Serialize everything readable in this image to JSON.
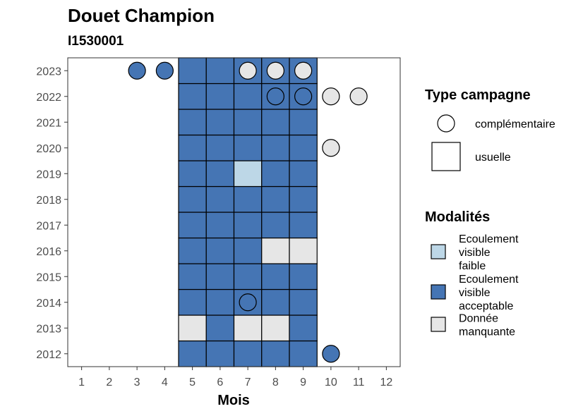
{
  "chart_data": {
    "type": "heatmap",
    "title": "Douet Champion",
    "subtitle": "I1530001",
    "xlabel": "Mois",
    "ylabel": "",
    "x_ticks": [
      1,
      2,
      3,
      4,
      5,
      6,
      7,
      8,
      9,
      10,
      11,
      12
    ],
    "y_ticks": [
      2012,
      2013,
      2014,
      2015,
      2016,
      2017,
      2018,
      2019,
      2020,
      2021,
      2022,
      2023
    ],
    "xlim": [
      0.5,
      12.5
    ],
    "ylim": [
      2011.5,
      2023.5
    ],
    "grid": false,
    "legend_position": "right",
    "colors": {
      "faible": "#bdd7e7",
      "acceptable": "#4575b4",
      "manquante": "#e6e6e6"
    },
    "legend_shape": {
      "title": "Type campagne",
      "entries": [
        {
          "label": "complémentaire",
          "shape": "circle"
        },
        {
          "label": "usuelle",
          "shape": "square"
        }
      ]
    },
    "legend_fill": {
      "title": "Modalités",
      "entries": [
        {
          "key": "faible",
          "lines": [
            "Ecoulement",
            "visible",
            "faible"
          ]
        },
        {
          "key": "acceptable",
          "lines": [
            "Ecoulement",
            "visible",
            "acceptable"
          ]
        },
        {
          "key": "manquante",
          "lines": [
            "Donnée",
            "manquante"
          ]
        }
      ]
    },
    "points": [
      {
        "month": 5,
        "year": 2012,
        "shape": "square",
        "modalite": "acceptable"
      },
      {
        "month": 6,
        "year": 2012,
        "shape": "square",
        "modalite": "acceptable"
      },
      {
        "month": 7,
        "year": 2012,
        "shape": "square",
        "modalite": "acceptable"
      },
      {
        "month": 8,
        "year": 2012,
        "shape": "square",
        "modalite": "acceptable"
      },
      {
        "month": 9,
        "year": 2012,
        "shape": "square",
        "modalite": "acceptable"
      },
      {
        "month": 10,
        "year": 2012,
        "shape": "circle",
        "modalite": "acceptable"
      },
      {
        "month": 5,
        "year": 2013,
        "shape": "square",
        "modalite": "manquante"
      },
      {
        "month": 6,
        "year": 2013,
        "shape": "square",
        "modalite": "acceptable"
      },
      {
        "month": 7,
        "year": 2013,
        "shape": "square",
        "modalite": "manquante"
      },
      {
        "month": 8,
        "year": 2013,
        "shape": "square",
        "modalite": "manquante"
      },
      {
        "month": 9,
        "year": 2013,
        "shape": "square",
        "modalite": "acceptable"
      },
      {
        "month": 5,
        "year": 2014,
        "shape": "square",
        "modalite": "acceptable"
      },
      {
        "month": 6,
        "year": 2014,
        "shape": "square",
        "modalite": "acceptable"
      },
      {
        "month": 7,
        "year": 2014,
        "shape": "square",
        "modalite": "acceptable"
      },
      {
        "month": 7,
        "year": 2014,
        "shape": "circle",
        "modalite": "acceptable"
      },
      {
        "month": 8,
        "year": 2014,
        "shape": "square",
        "modalite": "acceptable"
      },
      {
        "month": 9,
        "year": 2014,
        "shape": "square",
        "modalite": "acceptable"
      },
      {
        "month": 5,
        "year": 2015,
        "shape": "square",
        "modalite": "acceptable"
      },
      {
        "month": 6,
        "year": 2015,
        "shape": "square",
        "modalite": "acceptable"
      },
      {
        "month": 7,
        "year": 2015,
        "shape": "square",
        "modalite": "acceptable"
      },
      {
        "month": 8,
        "year": 2015,
        "shape": "square",
        "modalite": "acceptable"
      },
      {
        "month": 9,
        "year": 2015,
        "shape": "square",
        "modalite": "acceptable"
      },
      {
        "month": 5,
        "year": 2016,
        "shape": "square",
        "modalite": "acceptable"
      },
      {
        "month": 6,
        "year": 2016,
        "shape": "square",
        "modalite": "acceptable"
      },
      {
        "month": 7,
        "year": 2016,
        "shape": "square",
        "modalite": "acceptable"
      },
      {
        "month": 8,
        "year": 2016,
        "shape": "square",
        "modalite": "manquante"
      },
      {
        "month": 9,
        "year": 2016,
        "shape": "square",
        "modalite": "manquante"
      },
      {
        "month": 5,
        "year": 2017,
        "shape": "square",
        "modalite": "acceptable"
      },
      {
        "month": 6,
        "year": 2017,
        "shape": "square",
        "modalite": "acceptable"
      },
      {
        "month": 7,
        "year": 2017,
        "shape": "square",
        "modalite": "acceptable"
      },
      {
        "month": 8,
        "year": 2017,
        "shape": "square",
        "modalite": "acceptable"
      },
      {
        "month": 9,
        "year": 2017,
        "shape": "square",
        "modalite": "acceptable"
      },
      {
        "month": 5,
        "year": 2018,
        "shape": "square",
        "modalite": "acceptable"
      },
      {
        "month": 6,
        "year": 2018,
        "shape": "square",
        "modalite": "acceptable"
      },
      {
        "month": 7,
        "year": 2018,
        "shape": "square",
        "modalite": "acceptable"
      },
      {
        "month": 8,
        "year": 2018,
        "shape": "square",
        "modalite": "acceptable"
      },
      {
        "month": 9,
        "year": 2018,
        "shape": "square",
        "modalite": "acceptable"
      },
      {
        "month": 5,
        "year": 2019,
        "shape": "square",
        "modalite": "acceptable"
      },
      {
        "month": 6,
        "year": 2019,
        "shape": "square",
        "modalite": "acceptable"
      },
      {
        "month": 7,
        "year": 2019,
        "shape": "square",
        "modalite": "faible"
      },
      {
        "month": 8,
        "year": 2019,
        "shape": "square",
        "modalite": "acceptable"
      },
      {
        "month": 9,
        "year": 2019,
        "shape": "square",
        "modalite": "acceptable"
      },
      {
        "month": 5,
        "year": 2020,
        "shape": "square",
        "modalite": "acceptable"
      },
      {
        "month": 6,
        "year": 2020,
        "shape": "square",
        "modalite": "acceptable"
      },
      {
        "month": 7,
        "year": 2020,
        "shape": "square",
        "modalite": "acceptable"
      },
      {
        "month": 8,
        "year": 2020,
        "shape": "square",
        "modalite": "acceptable"
      },
      {
        "month": 9,
        "year": 2020,
        "shape": "square",
        "modalite": "acceptable"
      },
      {
        "month": 10,
        "year": 2020,
        "shape": "circle",
        "modalite": "manquante"
      },
      {
        "month": 5,
        "year": 2021,
        "shape": "square",
        "modalite": "acceptable"
      },
      {
        "month": 6,
        "year": 2021,
        "shape": "square",
        "modalite": "acceptable"
      },
      {
        "month": 7,
        "year": 2021,
        "shape": "square",
        "modalite": "acceptable"
      },
      {
        "month": 8,
        "year": 2021,
        "shape": "square",
        "modalite": "acceptable"
      },
      {
        "month": 9,
        "year": 2021,
        "shape": "square",
        "modalite": "acceptable"
      },
      {
        "month": 5,
        "year": 2022,
        "shape": "square",
        "modalite": "acceptable"
      },
      {
        "month": 6,
        "year": 2022,
        "shape": "square",
        "modalite": "acceptable"
      },
      {
        "month": 7,
        "year": 2022,
        "shape": "square",
        "modalite": "acceptable"
      },
      {
        "month": 8,
        "year": 2022,
        "shape": "square",
        "modalite": "acceptable"
      },
      {
        "month": 8,
        "year": 2022,
        "shape": "circle",
        "modalite": "acceptable"
      },
      {
        "month": 9,
        "year": 2022,
        "shape": "square",
        "modalite": "acceptable"
      },
      {
        "month": 9,
        "year": 2022,
        "shape": "circle",
        "modalite": "acceptable"
      },
      {
        "month": 10,
        "year": 2022,
        "shape": "circle",
        "modalite": "manquante"
      },
      {
        "month": 11,
        "year": 2022,
        "shape": "circle",
        "modalite": "manquante"
      },
      {
        "month": 3,
        "year": 2023,
        "shape": "circle",
        "modalite": "acceptable"
      },
      {
        "month": 4,
        "year": 2023,
        "shape": "circle",
        "modalite": "acceptable"
      },
      {
        "month": 5,
        "year": 2023,
        "shape": "square",
        "modalite": "acceptable"
      },
      {
        "month": 6,
        "year": 2023,
        "shape": "square",
        "modalite": "acceptable"
      },
      {
        "month": 7,
        "year": 2023,
        "shape": "square",
        "modalite": "acceptable"
      },
      {
        "month": 7,
        "year": 2023,
        "shape": "circle",
        "modalite": "manquante"
      },
      {
        "month": 8,
        "year": 2023,
        "shape": "square",
        "modalite": "acceptable"
      },
      {
        "month": 8,
        "year": 2023,
        "shape": "circle",
        "modalite": "manquante"
      },
      {
        "month": 9,
        "year": 2023,
        "shape": "square",
        "modalite": "acceptable"
      },
      {
        "month": 9,
        "year": 2023,
        "shape": "circle",
        "modalite": "manquante"
      }
    ]
  }
}
